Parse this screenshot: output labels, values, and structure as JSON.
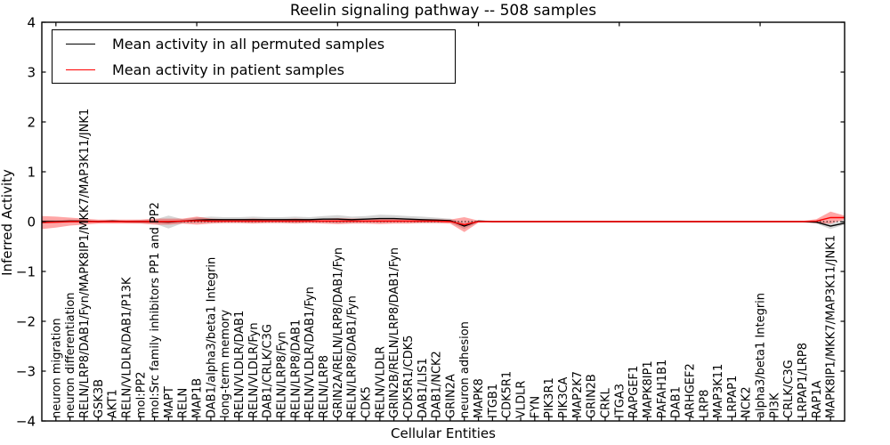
{
  "figure": {
    "title": "Reelin signaling pathway -- 508 samples",
    "xlabel": "Cellular Entities",
    "ylabel": "Inferred Activity"
  },
  "legend": {
    "items": [
      {
        "label": "Mean activity in all permuted samples",
        "color": "#000000"
      },
      {
        "label": "Mean activity in patient samples",
        "color": "#ff0000"
      }
    ],
    "position": "upper-left",
    "border_color": "#000000"
  },
  "chart_data": {
    "type": "line",
    "title": "Reelin signaling pathway -- 508 samples",
    "xlabel": "Cellular Entities",
    "ylabel": "Inferred Activity",
    "ylim": [
      -4,
      4
    ],
    "xlim": [
      -1,
      56
    ],
    "grid": false,
    "zero_line_dashed": true,
    "ytick_values": [
      4,
      3,
      2,
      1,
      0,
      -1,
      -2,
      -3,
      -4
    ],
    "ytick_labels": [
      "4",
      "3",
      "2",
      "1",
      "0",
      "−1",
      "−2",
      "−3",
      "−4"
    ],
    "top_tick_positions": [
      0,
      10,
      20,
      30,
      40,
      50
    ],
    "categories": [
      "neuron migration",
      "neuron differentiation",
      "RELN/LRP8/DAB1/Fyn/MAPK8IP1/MKK7/MAP3K11/JNK1",
      "GSK3B",
      "AKT1",
      "RELN/VLDLR/DAB1/P13K",
      "mol:PP2",
      "mol:Src family inhibitors PP1 and PP2",
      "MAPT",
      "RELN",
      "MAP1B",
      "DAB1/alpha3/beta1 Integrin",
      "long-term memory",
      "RELN/VLDLR/DAB1",
      "RELN/VLDLR/Fyn",
      "DAB1/CRLK/C3G",
      "RELN/LRP8/Fyn",
      "RELN/LRP8/DAB1",
      "RELN/VLDLR/DAB1/Fyn",
      "RELN/LRP8",
      "GRIN2A/RELN/LRP8/DAB1/Fyn",
      "RELN/LRP8/DAB1/Fyn",
      "CDK5",
      "RELN/VLDLR",
      "GRIN2B/RELN/LRP8/DAB1/Fyn",
      "CDK5R1/CDK5",
      "DAB1/LIS1",
      "DAB1/NCK2",
      "GRIN2A",
      "neuron adhesion",
      "MAPK8",
      "ITGB1",
      "CDK5R1",
      "VLDLR",
      "FYN",
      "PIK3R1",
      "PIK3CA",
      "MAP2K7",
      "GRIN2B",
      "CRKL",
      "ITGA3",
      "RAPGEF1",
      "MAPK8IP1",
      "PAFAH1B1",
      "DAB1",
      "ARHGEF2",
      "LRP8",
      "MAP3K11",
      "LRPAP1",
      "NCK2",
      "alpha3/beta1 Integrin",
      "PI3K",
      "CRLK/C3G",
      "LRPAP1/LRP8",
      "RAP1A",
      "MAPK8IP1/MKK7/MAP3K11/JNK1"
    ],
    "x_extended": [
      -1,
      0,
      1,
      2,
      3,
      4,
      5,
      6,
      7,
      8,
      9,
      10,
      11,
      12,
      13,
      14,
      15,
      16,
      17,
      18,
      19,
      20,
      21,
      22,
      23,
      24,
      25,
      26,
      27,
      28,
      29,
      30,
      31,
      32,
      33,
      34,
      35,
      36,
      37,
      38,
      39,
      40,
      41,
      42,
      43,
      44,
      45,
      46,
      47,
      48,
      49,
      50,
      51,
      52,
      53,
      54,
      55,
      56
    ],
    "series": [
      {
        "name": "Mean activity in all permuted samples",
        "color": "#000000",
        "band_color": "rgba(70,70,70,0.22)",
        "values": [
          0,
          0,
          0.01,
          0.01,
          0,
          0.01,
          0,
          0,
          0,
          -0.01,
          0.01,
          0.03,
          0.04,
          0.04,
          0.04,
          0.04,
          0.04,
          0.04,
          0.04,
          0.04,
          0.05,
          0.05,
          0.04,
          0.05,
          0.06,
          0.06,
          0.05,
          0.04,
          0.03,
          0.02,
          -0.09,
          0.01,
          0,
          0,
          0,
          0,
          0,
          0,
          0,
          0,
          0,
          0,
          0,
          0,
          0,
          0,
          0,
          0,
          0,
          0,
          0,
          0,
          0,
          0,
          0,
          -0.01,
          -0.09,
          -0.03
        ],
        "band_halfwidth": [
          0.03,
          0.03,
          0.03,
          0.02,
          0.02,
          0.02,
          0.02,
          0.03,
          0.04,
          0.13,
          0.04,
          0.05,
          0.06,
          0.05,
          0.05,
          0.06,
          0.05,
          0.05,
          0.06,
          0.05,
          0.06,
          0.08,
          0.06,
          0.06,
          0.08,
          0.07,
          0.06,
          0.06,
          0.05,
          0.04,
          0.06,
          0.02,
          0.01,
          0.01,
          0.01,
          0.01,
          0.01,
          0.01,
          0.01,
          0.01,
          0.01,
          0.01,
          0.01,
          0.01,
          0.01,
          0.01,
          0.01,
          0.01,
          0.01,
          0.01,
          0.01,
          0.01,
          0.01,
          0.01,
          0.01,
          0.03,
          0.06,
          0.03
        ]
      },
      {
        "name": "Mean activity in patient samples",
        "color": "#ff0000",
        "band_color": "rgba(255,0,0,0.35)",
        "values": [
          -0.02,
          -0.01,
          0,
          0,
          0,
          0,
          0,
          0,
          0,
          0,
          0.01,
          0.02,
          0.01,
          0.01,
          0.01,
          0.01,
          0.01,
          0.01,
          0.01,
          0.01,
          0.01,
          0.01,
          0.01,
          0.01,
          0.01,
          0.01,
          0.01,
          0.01,
          0.01,
          0,
          -0.06,
          0,
          0,
          0,
          0,
          0,
          0,
          0,
          0,
          0,
          0,
          0,
          0,
          0,
          0,
          0,
          0,
          0,
          0,
          0,
          0,
          0,
          0,
          0,
          0,
          0.01,
          0.08,
          0.08
        ],
        "band_halfwidth": [
          0.13,
          0.11,
          0.08,
          0.06,
          0.04,
          0.04,
          0.04,
          0.04,
          0.06,
          0.06,
          0.05,
          0.08,
          0.05,
          0.04,
          0.04,
          0.05,
          0.04,
          0.04,
          0.05,
          0.04,
          0.05,
          0.06,
          0.05,
          0.05,
          0.06,
          0.05,
          0.05,
          0.04,
          0.04,
          0.04,
          0.15,
          0.02,
          0.015,
          0.015,
          0.015,
          0.015,
          0.015,
          0.015,
          0.015,
          0.015,
          0.015,
          0.015,
          0.015,
          0.015,
          0.015,
          0.015,
          0.015,
          0.015,
          0.015,
          0.015,
          0.015,
          0.015,
          0.015,
          0.015,
          0.015,
          0.04,
          0.12,
          0.04
        ]
      }
    ]
  }
}
